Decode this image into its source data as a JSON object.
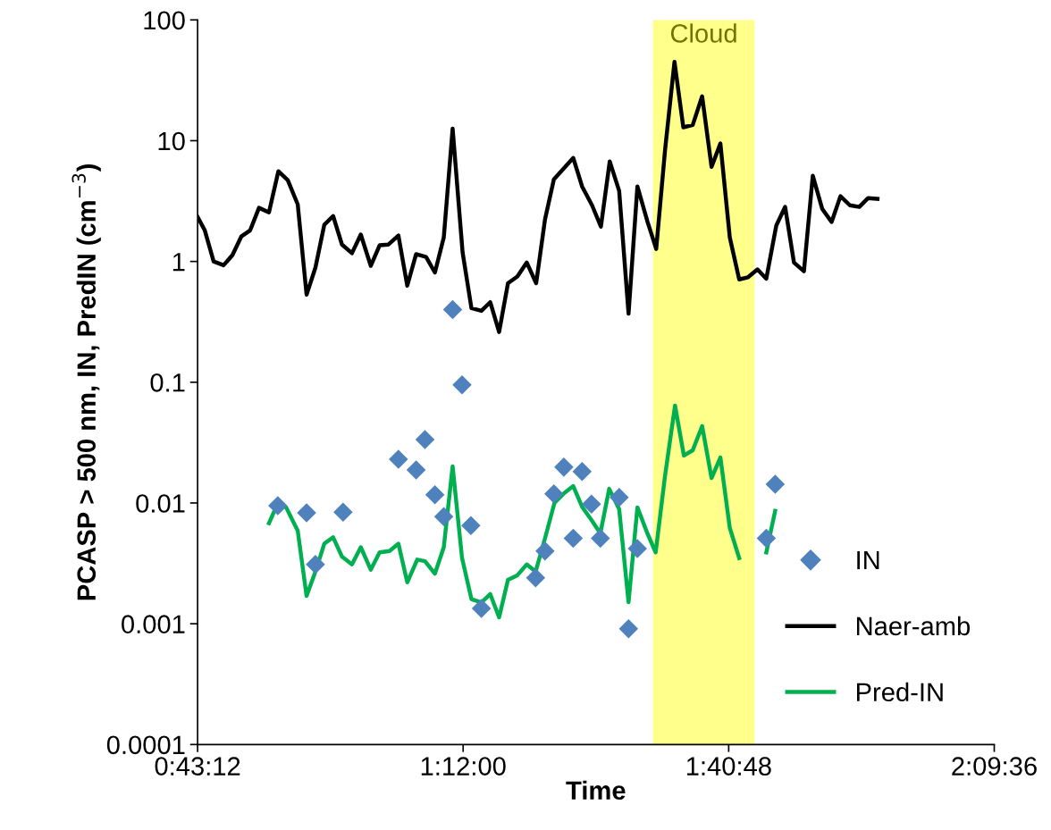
{
  "chart_data": {
    "type": "line",
    "xlabel": "Time",
    "ylabel": "PCASP > 500 nm, IN, PredIN (cm$^{−3}$)",
    "log": "y",
    "xlim": [
      0.72,
      2.16
    ],
    "ylim": [
      0.0001,
      100
    ],
    "xticks": [
      {
        "value": 0.72,
        "label": "0:43:12"
      },
      {
        "value": 1.2,
        "label": "1:12:00"
      },
      {
        "value": 1.68,
        "label": "1:40:48"
      },
      {
        "value": 2.16,
        "label": "2:09:36"
      }
    ],
    "yticks": [
      0.0001,
      0.001,
      0.01,
      0.1,
      1,
      10,
      100
    ],
    "grid": false,
    "legend": "lower right",
    "bands": [
      {
        "axis": "x",
        "from": 1.543,
        "to": 1.727,
        "label": "Cloud",
        "color": "#ffff00"
      }
    ],
    "series": [
      {
        "name": "IN",
        "type": "scatter",
        "marker": "diamond",
        "color": "#4f81bd",
        "x": [
          0.865,
          0.917,
          0.933,
          0.983,
          1.083,
          1.115,
          1.131,
          1.149,
          1.165,
          1.181,
          1.198,
          1.214,
          1.233,
          1.331,
          1.348,
          1.364,
          1.382,
          1.399,
          1.415,
          1.432,
          1.448,
          1.482,
          1.499,
          1.515,
          1.748,
          1.764
        ],
        "values": [
          0.0095,
          0.0083,
          0.0031,
          0.0084,
          0.023,
          0.0188,
          0.0335,
          0.0117,
          0.0077,
          0.4,
          0.095,
          0.0065,
          0.00134,
          0.0024,
          0.004,
          0.0119,
          0.0198,
          0.0051,
          0.0182,
          0.0098,
          0.0051,
          0.0111,
          0.00091,
          0.0042,
          0.0051,
          0.0143
        ]
      },
      {
        "name": "Naer-amb",
        "marker": "none",
        "line_style": "solid",
        "color": "#000000",
        "x": [
          0.72,
          0.733,
          0.749,
          0.767,
          0.783,
          0.799,
          0.815,
          0.831,
          0.849,
          0.866,
          0.883,
          0.901,
          0.917,
          0.933,
          0.949,
          0.965,
          0.981,
          0.999,
          1.015,
          1.033,
          1.049,
          1.065,
          1.083,
          1.099,
          1.115,
          1.133,
          1.149,
          1.165,
          1.181,
          1.199,
          1.215,
          1.233,
          1.249,
          1.265,
          1.281,
          1.298,
          1.315,
          1.332,
          1.348,
          1.364,
          1.383,
          1.399,
          1.415,
          1.433,
          1.449,
          1.465,
          1.482,
          1.499,
          1.515,
          1.533,
          1.549,
          1.565,
          1.582,
          1.598,
          1.615,
          1.632,
          1.649,
          1.665,
          1.682,
          1.699,
          1.715,
          1.732,
          1.748,
          1.766,
          1.782,
          1.798,
          1.816,
          1.832,
          1.849,
          1.866,
          1.882,
          1.899,
          1.916,
          1.932,
          1.949
        ],
        "values": [
          2.34,
          1.81,
          1.0,
          0.93,
          1.13,
          1.61,
          1.81,
          2.78,
          2.55,
          5.58,
          4.71,
          2.97,
          0.53,
          0.89,
          2.01,
          2.38,
          1.38,
          1.17,
          1.67,
          0.92,
          1.36,
          1.38,
          1.64,
          0.63,
          1.15,
          1.09,
          0.81,
          1.58,
          12.6,
          1.19,
          0.41,
          0.39,
          0.46,
          0.26,
          0.66,
          0.75,
          0.98,
          0.66,
          2.23,
          4.79,
          5.98,
          7.2,
          4.18,
          2.92,
          1.94,
          6.74,
          3.84,
          0.37,
          4.18,
          2.15,
          1.27,
          8.4,
          45,
          12.9,
          13.5,
          23.3,
          6.08,
          9.47,
          1.58,
          0.71,
          0.74,
          0.86,
          0.72,
          1.98,
          2.83,
          0.98,
          0.83,
          5.13,
          2.73,
          2.12,
          3.47,
          2.92,
          2.83,
          3.35,
          3.3
        ]
      },
      {
        "name": "Pred-IN",
        "marker": "none",
        "line_style": "solid",
        "color": "#00b050",
        "x": [
          0.849,
          0.864,
          0.88,
          0.901,
          0.917,
          0.933,
          0.949,
          0.965,
          0.981,
          0.999,
          1.015,
          1.033,
          1.049,
          1.067,
          1.083,
          1.099,
          1.117,
          1.131,
          1.149,
          1.165,
          1.181,
          1.198,
          1.215,
          1.233,
          1.249,
          1.265,
          1.281,
          1.298,
          1.315,
          1.331,
          1.348,
          1.365,
          1.383,
          1.399,
          1.415,
          1.433,
          1.448,
          1.464,
          1.482,
          1.499,
          1.515,
          1.533,
          1.548,
          1.565,
          1.583,
          1.599,
          1.615,
          1.632,
          1.649,
          1.665,
          1.682,
          1.699,
          1.732,
          1.748,
          1.764
        ],
        "values": [
          0.0068,
          0.0097,
          0.0092,
          0.0059,
          0.0017,
          0.0027,
          0.0046,
          0.0052,
          0.0036,
          0.0031,
          0.0043,
          0.0028,
          0.0039,
          0.004,
          0.0046,
          0.0022,
          0.0034,
          0.0033,
          0.0026,
          0.0043,
          0.0201,
          0.0035,
          0.0016,
          0.0015,
          0.00176,
          0.00113,
          0.00231,
          0.00252,
          0.0031,
          0.0027,
          0.0051,
          0.01,
          0.0121,
          0.0138,
          0.0093,
          0.0071,
          0.0056,
          0.0131,
          0.0089,
          0.00151,
          0.0092,
          0.0056,
          0.0039,
          0.0169,
          0.064,
          0.0247,
          0.0273,
          0.0433,
          0.0161,
          0.0238,
          0.0062,
          0.0035,
          null,
          0.0039,
          0.0086
        ]
      }
    ]
  }
}
